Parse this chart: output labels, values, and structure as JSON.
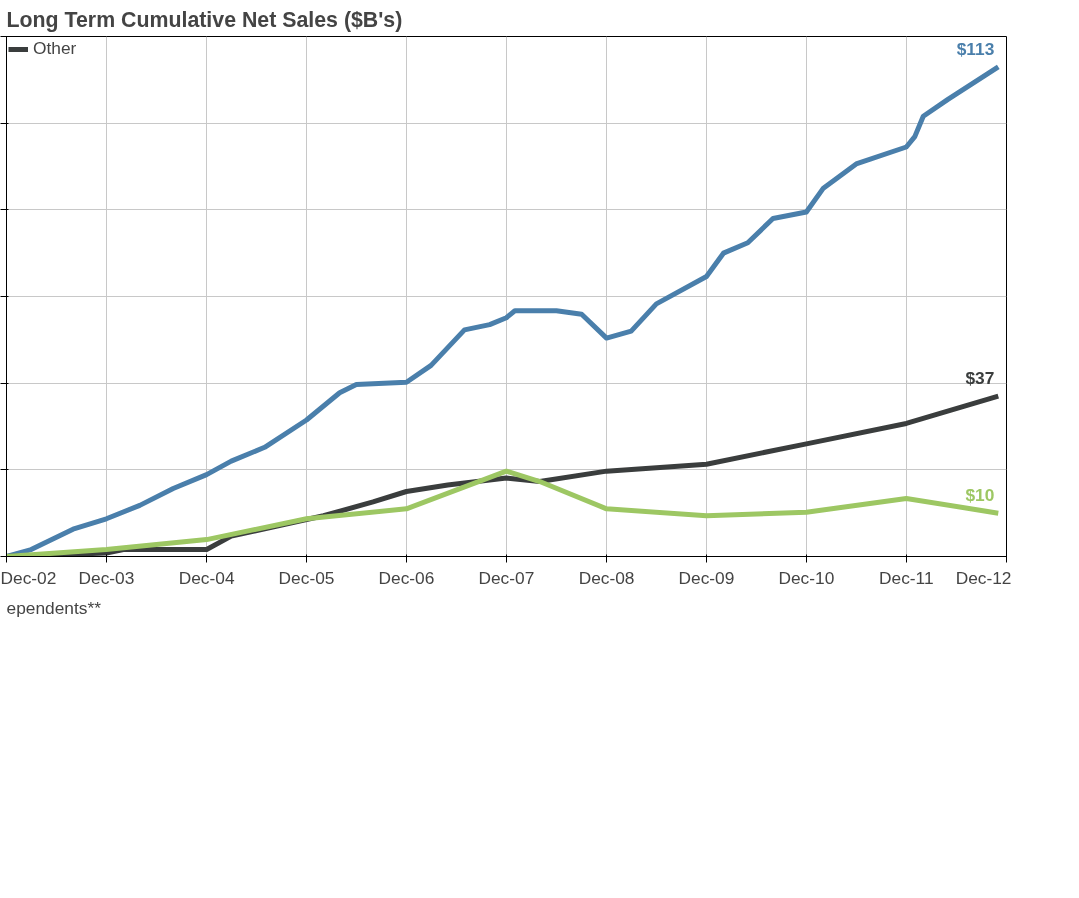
{
  "chart_data": {
    "type": "line",
    "title": "Long Term Cumulative Net Sales ($B's)",
    "xlim": [
      "2002-12",
      "2012-12"
    ],
    "xticks": [
      {
        "value": "2002-12",
        "label": "Dec-02"
      },
      {
        "value": "2003-12",
        "label": "Dec-03"
      },
      {
        "value": "2004-12",
        "label": "Dec-04"
      },
      {
        "value": "2005-12",
        "label": "Dec-05"
      },
      {
        "value": "2006-12",
        "label": "Dec-06"
      },
      {
        "value": "2007-12",
        "label": "Dec-07"
      },
      {
        "value": "2008-12",
        "label": "Dec-08"
      },
      {
        "value": "2009-12",
        "label": "Dec-09"
      },
      {
        "value": "2010-12",
        "label": "Dec-10"
      },
      {
        "value": "2011-12",
        "label": "Dec-11"
      },
      {
        "value": "2012-12",
        "label": "Dec-12"
      }
    ],
    "ylim": [
      0,
      120
    ],
    "yticks": [
      {
        "value": 0,
        "label": null
      },
      {
        "value": 20,
        "label": null
      },
      {
        "value": 40,
        "label": null
      },
      {
        "value": 60,
        "label": null
      },
      {
        "value": 80,
        "label": null
      },
      {
        "value": 100,
        "label": null
      },
      {
        "value": 120,
        "label": null
      }
    ],
    "grid": true,
    "legend": "top left",
    "line_style": "solid",
    "marker": "none",
    "series": [
      {
        "color": "#4a7fab",
        "x": [
          "2002-12",
          "2003-03",
          "2003-08",
          "2003-12",
          "2004-04",
          "2004-08",
          "2004-12",
          "2005-03",
          "2005-07",
          "2005-12",
          "2006-04",
          "2006-06",
          "2006-12",
          "2007-03",
          "2007-07",
          "2007-10",
          "2007-12",
          "2008-01",
          "2008-06",
          "2008-09",
          "2008-12",
          "2009-03",
          "2009-06",
          "2009-12",
          "2010-02",
          "2010-05",
          "2010-08",
          "2010-12",
          "2011-02",
          "2011-06",
          "2011-12",
          "2012-01",
          "2012-02",
          "2012-05",
          "2012-11"
        ],
        "values": [
          0,
          1.6,
          6.3,
          8.7,
          11.8,
          15.7,
          18.9,
          22,
          25.2,
          31.5,
          37.8,
          39.7,
          40.2,
          44.1,
          52.3,
          53.5,
          55.1,
          56.7,
          56.7,
          55.9,
          50.4,
          52,
          58.3,
          64.6,
          70,
          72.4,
          78,
          79.5,
          85,
          90.6,
          94.5,
          96.9,
          101.6,
          105.5,
          113
        ],
        "value_labels": [
          null,
          null,
          null,
          null,
          null,
          null,
          null,
          null,
          null,
          null,
          null,
          null,
          null,
          null,
          null,
          null,
          null,
          null,
          null,
          null,
          null,
          null,
          null,
          null,
          null,
          null,
          null,
          null,
          null,
          null,
          null,
          null,
          null,
          null,
          "$113"
        ]
      },
      {
        "name": "Other",
        "color": "#3a3d3d",
        "x": [
          "2002-12",
          "2003-12",
          "2004-02",
          "2004-12",
          "2005-03",
          "2006-02",
          "2006-08",
          "2006-12",
          "2007-05",
          "2007-12",
          "2008-04",
          "2008-12",
          "2009-12",
          "2010-12",
          "2011-12",
          "2012-11"
        ],
        "values": [
          0,
          0.8,
          1.6,
          1.6,
          4.7,
          9.4,
          12.6,
          15,
          16.5,
          18.1,
          17.3,
          19.7,
          21.3,
          26,
          30.7,
          37
        ],
        "value_labels": [
          null,
          null,
          null,
          null,
          null,
          null,
          null,
          null,
          null,
          null,
          null,
          null,
          null,
          null,
          null,
          "$37"
        ]
      },
      {
        "color": "#9dc763",
        "x": [
          "2002-12",
          "2003-12",
          "2004-12",
          "2005-12",
          "2006-12",
          "2007-12",
          "2008-04",
          "2008-12",
          "2009-12",
          "2010-12",
          "2011-12",
          "2012-11"
        ],
        "values": [
          0,
          1.6,
          3.9,
          8.7,
          11,
          19.7,
          17.3,
          11,
          9.4,
          10.2,
          13.4,
          10
        ],
        "value_labels": [
          null,
          null,
          null,
          null,
          null,
          null,
          null,
          null,
          null,
          null,
          null,
          "$10"
        ]
      }
    ],
    "annotations": [
      "ependents**"
    ]
  }
}
